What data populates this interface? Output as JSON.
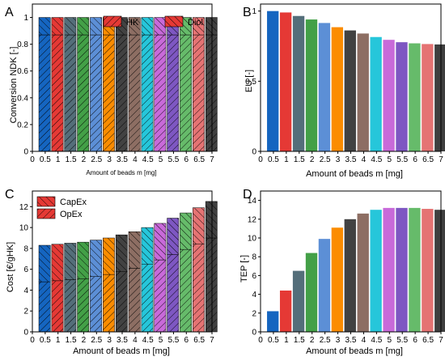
{
  "chart_data": [
    {
      "panel": "A",
      "type": "bar",
      "stacked": true,
      "x": [
        0.5,
        1,
        1.5,
        2,
        2.5,
        3,
        3.5,
        4,
        4.5,
        5,
        5.5,
        6,
        6.5,
        7
      ],
      "xlabel": "Amount of beads m [mg]",
      "ylabel": "Conversion NDK [-]",
      "xticks": [
        "0",
        "0.5",
        "1",
        "1.5",
        "2",
        "2.5",
        "3",
        "3.5",
        "4",
        "4.5",
        "5",
        "5.5",
        "6",
        "6.5",
        "7"
      ],
      "yticks": [
        "0",
        "0.2",
        "0.4",
        "0.6",
        "0.8",
        "1"
      ],
      "xlim": [
        0,
        7
      ],
      "ylim": [
        0,
        1.1
      ],
      "series": [
        {
          "name": "HK",
          "values": [
            0.87,
            0.87,
            0.87,
            0.87,
            0.87,
            0.87,
            0.87,
            0.87,
            0.87,
            0.87,
            0.87,
            0.87,
            0.87,
            0.87
          ]
        },
        {
          "name": "Diol",
          "values": [
            0.13,
            0.13,
            0.13,
            0.13,
            0.13,
            0.13,
            0.13,
            0.13,
            0.13,
            0.13,
            0.13,
            0.13,
            0.13,
            0.13
          ]
        }
      ],
      "legend_position": "top-right"
    },
    {
      "panel": "B",
      "type": "bar",
      "x": [
        0.5,
        1,
        1.5,
        2,
        2.5,
        3,
        3.5,
        4,
        4.5,
        5,
        5.5,
        6,
        6.5,
        7
      ],
      "values": [
        1.0,
        0.99,
        0.965,
        0.94,
        0.915,
        0.885,
        0.862,
        0.84,
        0.815,
        0.795,
        0.778,
        0.77,
        0.765,
        0.762
      ],
      "xlabel": "Amount of beads m [mg]",
      "ylabel": "EU [-]",
      "xticks": [
        "0",
        "0.5",
        "1",
        "1.5",
        "2",
        "2.5",
        "3",
        "3.5",
        "4",
        "4.5",
        "5",
        "5.5",
        "6",
        "6.5",
        "7"
      ],
      "yticks": [
        "0",
        "0.5",
        "1"
      ],
      "xlim": [
        0,
        7
      ],
      "ylim": [
        0,
        1.05
      ]
    },
    {
      "panel": "C",
      "type": "bar",
      "stacked": true,
      "x": [
        0.5,
        1,
        1.5,
        2,
        2.5,
        3,
        3.5,
        4,
        4.5,
        5,
        5.5,
        6,
        6.5,
        7
      ],
      "xlabel": "Amount of beads m [mg]",
      "ylabel": "Cost [€/gHK]",
      "xticks": [
        "0",
        "0.5",
        "1",
        "1.5",
        "2",
        "2.5",
        "3",
        "3.5",
        "4",
        "4.5",
        "5",
        "5.5",
        "6",
        "6.5",
        "7"
      ],
      "yticks": [
        "0",
        "2",
        "4",
        "6",
        "8",
        "10",
        "12"
      ],
      "xlim": [
        0,
        7
      ],
      "ylim": [
        0,
        13.5
      ],
      "series": [
        {
          "name": "CapEx",
          "values": [
            4.8,
            4.9,
            5.0,
            5.1,
            5.3,
            5.5,
            5.8,
            6.1,
            6.5,
            6.9,
            7.4,
            7.9,
            8.4,
            9.0
          ]
        },
        {
          "name": "OpEx",
          "values": [
            3.5,
            3.5,
            3.5,
            3.5,
            3.5,
            3.5,
            3.5,
            3.5,
            3.5,
            3.5,
            3.5,
            3.5,
            3.5,
            3.5
          ]
        }
      ],
      "legend_position": "top-left"
    },
    {
      "panel": "D",
      "type": "bar",
      "x": [
        0.5,
        1,
        1.5,
        2,
        2.5,
        3,
        3.5,
        4,
        4.5,
        5,
        5.5,
        6,
        6.5,
        7
      ],
      "values": [
        2.2,
        4.4,
        6.5,
        8.4,
        9.9,
        11.1,
        12.0,
        12.6,
        13.0,
        13.2,
        13.2,
        13.2,
        13.1,
        13.0
      ],
      "xlabel": "Amount of beads m [mg]",
      "ylabel": "TEP [-]",
      "xticks": [
        "0",
        "0.5",
        "1",
        "1.5",
        "2",
        "2.5",
        "3",
        "3.5",
        "4",
        "4.5",
        "5",
        "5.5",
        "6",
        "6.5",
        "7"
      ],
      "yticks": [
        "0",
        "2",
        "4",
        "6",
        "8",
        "10",
        "12",
        "14"
      ],
      "xlim": [
        0,
        7
      ],
      "ylim": [
        0,
        15
      ]
    }
  ],
  "colors": [
    "#1565c0",
    "#e53935",
    "#546e7a",
    "#43a047",
    "#5c8fd6",
    "#fb8c00",
    "#424242",
    "#8d6e63",
    "#26c6da",
    "#c86ad9",
    "#7e57c2",
    "#66bb6a",
    "#e57373",
    "#3f3f3f"
  ]
}
